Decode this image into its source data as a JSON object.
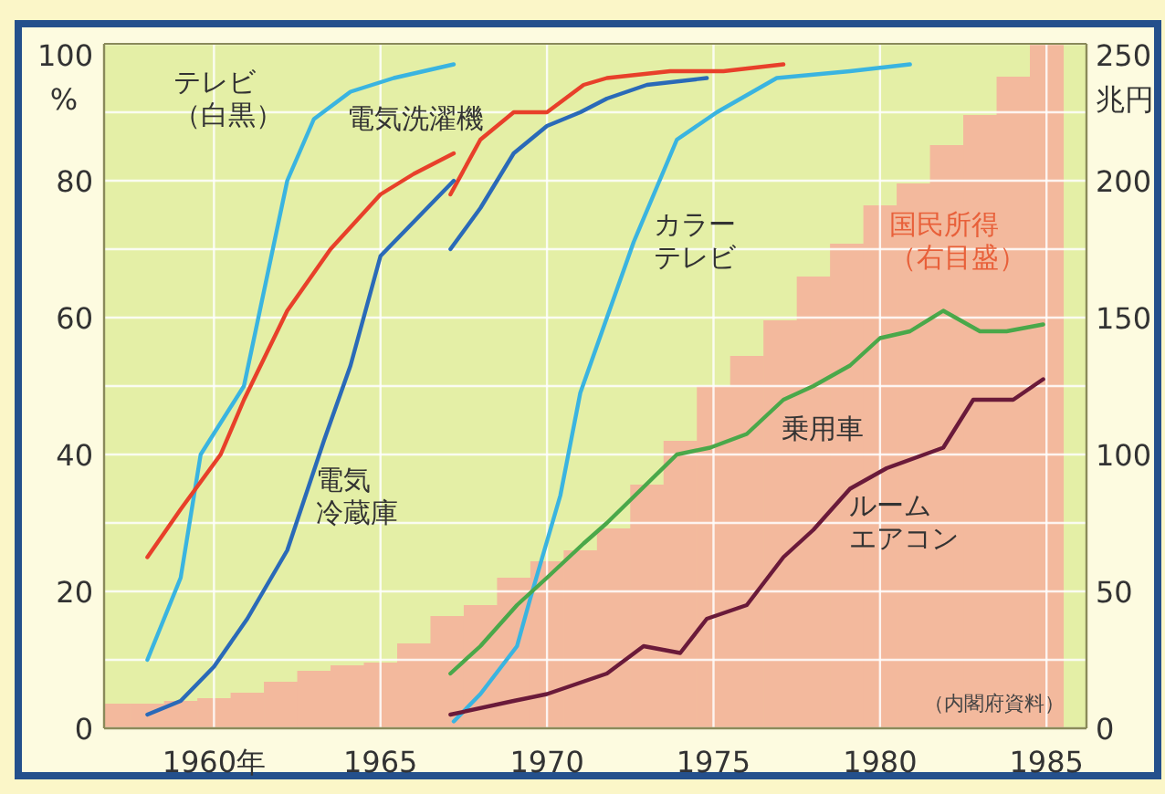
{
  "chart_data": {
    "type": "line",
    "xlim": [
      1956.7,
      1986.2
    ],
    "ylim": [
      0,
      100
    ],
    "y2lim": [
      0,
      250
    ],
    "xticks": [
      {
        "value": 1960,
        "label": "1960年"
      },
      1965,
      1970,
      1975,
      1980,
      1985
    ],
    "yticks": [
      0,
      {
        "value": 10,
        "label": null
      },
      20,
      {
        "value": 30,
        "label": null
      },
      40,
      {
        "value": 50,
        "label": null
      },
      60,
      {
        "value": 70,
        "label": null
      },
      80,
      {
        "value": 90,
        "label": null
      },
      100
    ],
    "y2ticks": [
      0,
      50,
      100,
      150,
      200,
      250
    ],
    "ylabel": "%",
    "y2label": "兆円",
    "grid": true,
    "annotations": [
      "（内閣府資料）"
    ],
    "series": [
      {
        "name": "国民所得（右目盛）",
        "type": "bar",
        "axis": "y2",
        "color": "#f3b99d",
        "x": [
          1957,
          1958,
          1959,
          1960,
          1961,
          1962,
          1963,
          1964,
          1965,
          1966,
          1967,
          1968,
          1969,
          1970,
          1971,
          1972,
          1973,
          1974,
          1975,
          1976,
          1977,
          1978,
          1979,
          1980,
          1981,
          1982,
          1983,
          1984,
          1985
        ],
        "values": [
          9,
          9,
          10,
          11,
          13,
          17,
          21,
          23,
          24,
          31,
          41,
          45,
          55,
          61,
          65,
          73,
          89,
          105,
          125,
          136,
          149,
          165,
          177,
          191,
          199,
          213,
          224,
          238,
          250
        ]
      },
      {
        "name": "テレビ（白黒）",
        "color": "#3ab4e0",
        "x": [
          1958,
          1959,
          1959.6,
          1960.9,
          1962.2,
          1963,
          1964.1,
          1965.4,
          1967.2
        ],
        "values": [
          10,
          22,
          40,
          50,
          80,
          89,
          93,
          95,
          97
        ]
      },
      {
        "name": "電気洗濯機",
        "color": "#e8402a",
        "x": [
          1958,
          1959,
          1960.2,
          1960.9,
          1962.2,
          1963.5,
          1965,
          1966,
          1967.2,
          null,
          1967.1,
          1968,
          1969,
          1970,
          1971.1,
          1971.8,
          1973.7,
          1975.3,
          1977.1
        ],
        "values": [
          25,
          32,
          40,
          48,
          61,
          70,
          78,
          81,
          84,
          null,
          78,
          86,
          90,
          90,
          94,
          95,
          96,
          96,
          97
        ]
      },
      {
        "name": "電気冷蔵庫",
        "color": "#2a6ab8",
        "x": [
          1958,
          1959,
          1960,
          1961,
          1962.2,
          1963.3,
          1964.1,
          1965,
          1966.2,
          1967.2,
          null,
          1967.1,
          1968,
          1969,
          1970,
          1971,
          1971.8,
          1973,
          1974.8
        ],
        "values": [
          2,
          4,
          9,
          16,
          26,
          42,
          53,
          69,
          75,
          80,
          null,
          70,
          76,
          84,
          88,
          90,
          92,
          94,
          95
        ]
      },
      {
        "name": "カラーテレビ",
        "color": "#3ab4e0",
        "x": [
          1967.2,
          1968,
          1969.1,
          1969.5,
          1970.4,
          1971,
          1972.6,
          1973.9,
          1975.1,
          1976.9,
          1979.1,
          1980.9
        ],
        "values": [
          1,
          5,
          12,
          19,
          34,
          49,
          71,
          86,
          90,
          95,
          96,
          97
        ]
      },
      {
        "name": "乗用車",
        "color": "#4aa84a",
        "x": [
          1967.1,
          1968,
          1969.1,
          1970,
          1971.1,
          1971.8,
          1973.9,
          1974.9,
          1976,
          1977.1,
          1978,
          1979.1,
          1980,
          1980.9,
          1981.9,
          1983,
          1983.8,
          1984.9
        ],
        "values": [
          8,
          12,
          18,
          22,
          27,
          30,
          40,
          41,
          43,
          48,
          50,
          53,
          57,
          58,
          61,
          58,
          58,
          59
        ]
      },
      {
        "name": "ルームエアコン",
        "color": "#6a1a3a",
        "x": [
          1967.1,
          1969,
          1970,
          1971.8,
          1972.9,
          1974,
          1974.8,
          1976,
          1977.1,
          1978,
          1979.1,
          1980.2,
          1981.9,
          1982.8,
          1984,
          1984.9
        ],
        "values": [
          2,
          4,
          5,
          8,
          12,
          11,
          16,
          18,
          25,
          29,
          35,
          38,
          41,
          48,
          48,
          51
        ]
      }
    ]
  }
}
